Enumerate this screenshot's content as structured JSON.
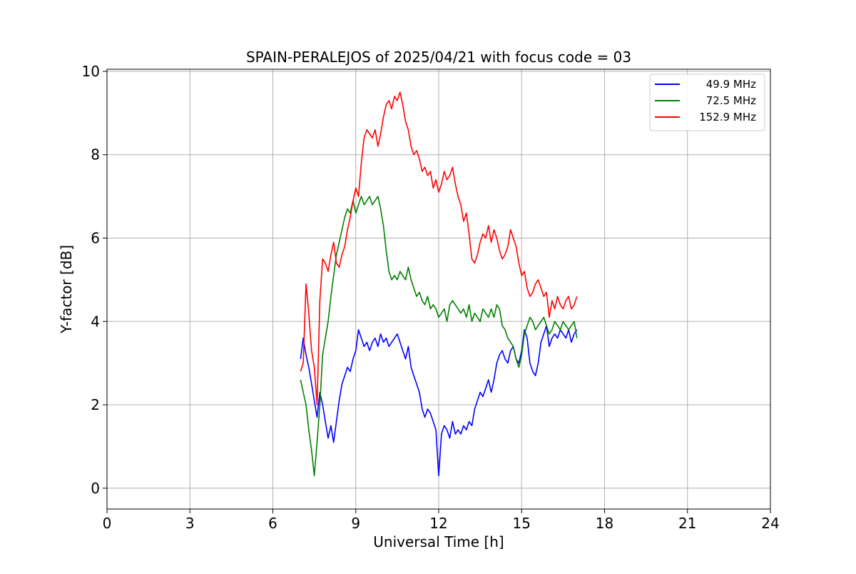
{
  "chart_data": {
    "type": "line",
    "title": "SPAIN-PERALEJOS of 2025/04/21 with focus code = 03",
    "xlabel": "Universal Time [h]",
    "ylabel": "Y-factor [dB]",
    "xlim": [
      0,
      24
    ],
    "ylim": [
      -0.5,
      10.05
    ],
    "xticks": [
      0,
      3,
      6,
      9,
      12,
      15,
      18,
      21,
      24
    ],
    "yticks": [
      0,
      2,
      4,
      6,
      8,
      10
    ],
    "grid": true,
    "legend_position": "top-right",
    "series": [
      {
        "name": "49.9 MHz",
        "color": "#0000ff",
        "x": [
          7.0,
          7.1,
          7.2,
          7.3,
          7.4,
          7.5,
          7.6,
          7.7,
          7.8,
          7.9,
          8.0,
          8.1,
          8.2,
          8.3,
          8.4,
          8.5,
          8.6,
          8.7,
          8.8,
          8.9,
          9.0,
          9.1,
          9.2,
          9.3,
          9.4,
          9.5,
          9.6,
          9.7,
          9.8,
          9.9,
          10.0,
          10.1,
          10.2,
          10.3,
          10.4,
          10.5,
          10.6,
          10.7,
          10.8,
          10.9,
          11.0,
          11.1,
          11.2,
          11.3,
          11.4,
          11.5,
          11.6,
          11.7,
          11.8,
          11.9,
          12.0,
          12.1,
          12.2,
          12.3,
          12.4,
          12.5,
          12.6,
          12.7,
          12.8,
          12.9,
          13.0,
          13.1,
          13.2,
          13.3,
          13.4,
          13.5,
          13.6,
          13.7,
          13.8,
          13.9,
          14.0,
          14.1,
          14.2,
          14.3,
          14.4,
          14.5,
          14.6,
          14.7,
          14.8,
          14.9,
          15.0,
          15.1,
          15.2,
          15.3,
          15.4,
          15.5,
          15.6,
          15.7,
          15.8,
          15.9,
          16.0,
          16.1,
          16.2,
          16.3,
          16.4,
          16.5,
          16.6,
          16.7,
          16.8,
          16.9,
          17.0
        ],
        "y": [
          3.1,
          3.6,
          3.2,
          2.9,
          2.5,
          2.1,
          1.7,
          2.3,
          2.0,
          1.6,
          1.2,
          1.5,
          1.1,
          1.6,
          2.1,
          2.5,
          2.7,
          2.9,
          2.8,
          3.1,
          3.3,
          3.8,
          3.6,
          3.4,
          3.5,
          3.3,
          3.5,
          3.6,
          3.4,
          3.7,
          3.5,
          3.6,
          3.4,
          3.5,
          3.6,
          3.7,
          3.5,
          3.3,
          3.1,
          3.4,
          2.9,
          2.7,
          2.5,
          2.3,
          1.9,
          1.7,
          1.9,
          1.8,
          1.6,
          1.4,
          0.3,
          1.3,
          1.5,
          1.4,
          1.2,
          1.6,
          1.3,
          1.4,
          1.3,
          1.5,
          1.4,
          1.6,
          1.5,
          1.9,
          2.1,
          2.3,
          2.2,
          2.4,
          2.6,
          2.3,
          2.6,
          3.0,
          3.2,
          3.3,
          3.1,
          3.0,
          3.3,
          3.4,
          3.1,
          3.0,
          3.3,
          3.8,
          3.6,
          3.0,
          2.8,
          2.7,
          3.0,
          3.5,
          3.7,
          3.9,
          3.4,
          3.6,
          3.7,
          3.6,
          3.8,
          3.7,
          3.6,
          3.8,
          3.5,
          3.7,
          3.8
        ]
      },
      {
        "name": "72.5 MHz",
        "color": "#008000",
        "x": [
          7.0,
          7.1,
          7.2,
          7.3,
          7.4,
          7.5,
          7.6,
          7.7,
          7.8,
          7.9,
          8.0,
          8.1,
          8.2,
          8.3,
          8.4,
          8.5,
          8.6,
          8.7,
          8.8,
          8.9,
          9.0,
          9.1,
          9.2,
          9.3,
          9.4,
          9.5,
          9.6,
          9.7,
          9.8,
          9.9,
          10.0,
          10.1,
          10.2,
          10.3,
          10.4,
          10.5,
          10.6,
          10.7,
          10.8,
          10.9,
          11.0,
          11.1,
          11.2,
          11.3,
          11.4,
          11.5,
          11.6,
          11.7,
          11.8,
          11.9,
          12.0,
          12.1,
          12.2,
          12.3,
          12.4,
          12.5,
          12.6,
          12.7,
          12.8,
          12.9,
          13.0,
          13.1,
          13.2,
          13.3,
          13.4,
          13.5,
          13.6,
          13.7,
          13.8,
          13.9,
          14.0,
          14.1,
          14.2,
          14.3,
          14.4,
          14.5,
          14.6,
          14.7,
          14.8,
          14.9,
          15.0,
          15.1,
          15.2,
          15.3,
          15.4,
          15.5,
          15.6,
          15.7,
          15.8,
          15.9,
          16.0,
          16.1,
          16.2,
          16.3,
          16.4,
          16.5,
          16.6,
          16.7,
          16.8,
          16.9,
          17.0
        ],
        "y": [
          2.6,
          2.3,
          2.0,
          1.4,
          0.9,
          0.3,
          1.1,
          2.0,
          3.2,
          3.6,
          4.0,
          4.6,
          5.1,
          5.6,
          5.9,
          6.2,
          6.5,
          6.7,
          6.6,
          6.9,
          6.6,
          6.8,
          7.0,
          6.8,
          6.9,
          7.0,
          6.8,
          6.9,
          7.0,
          6.7,
          6.3,
          5.7,
          5.2,
          5.0,
          5.1,
          5.0,
          5.2,
          5.1,
          5.0,
          5.3,
          5.0,
          4.8,
          4.6,
          4.7,
          4.5,
          4.4,
          4.6,
          4.3,
          4.4,
          4.3,
          4.1,
          4.2,
          4.3,
          4.0,
          4.4,
          4.5,
          4.4,
          4.3,
          4.2,
          4.3,
          4.1,
          4.4,
          4.0,
          4.2,
          4.1,
          4.0,
          4.3,
          4.2,
          4.1,
          4.3,
          4.1,
          4.4,
          4.3,
          3.9,
          3.8,
          3.6,
          3.5,
          3.4,
          3.1,
          2.9,
          3.2,
          3.7,
          3.9,
          4.1,
          4.0,
          3.8,
          3.9,
          4.0,
          4.1,
          3.9,
          3.7,
          3.8,
          4.0,
          3.9,
          3.8,
          4.0,
          3.9,
          3.8,
          3.9,
          4.0,
          3.6
        ]
      },
      {
        "name": "152.9 MHz",
        "color": "#ff0000",
        "x": [
          7.0,
          7.1,
          7.2,
          7.3,
          7.4,
          7.5,
          7.6,
          7.7,
          7.8,
          7.9,
          8.0,
          8.1,
          8.2,
          8.3,
          8.4,
          8.5,
          8.6,
          8.7,
          8.8,
          8.9,
          9.0,
          9.1,
          9.2,
          9.3,
          9.4,
          9.5,
          9.6,
          9.7,
          9.8,
          9.9,
          10.0,
          10.1,
          10.2,
          10.3,
          10.4,
          10.5,
          10.6,
          10.7,
          10.8,
          10.9,
          11.0,
          11.1,
          11.2,
          11.3,
          11.4,
          11.5,
          11.6,
          11.7,
          11.8,
          11.9,
          12.0,
          12.1,
          12.2,
          12.3,
          12.4,
          12.5,
          12.6,
          12.7,
          12.8,
          12.9,
          13.0,
          13.1,
          13.2,
          13.3,
          13.4,
          13.5,
          13.6,
          13.7,
          13.8,
          13.9,
          14.0,
          14.1,
          14.2,
          14.3,
          14.4,
          14.5,
          14.6,
          14.7,
          14.8,
          14.9,
          15.0,
          15.1,
          15.2,
          15.3,
          15.4,
          15.5,
          15.6,
          15.7,
          15.8,
          15.9,
          16.0,
          16.1,
          16.2,
          16.3,
          16.4,
          16.5,
          16.6,
          16.7,
          16.8,
          16.9,
          17.0
        ],
        "y": [
          2.8,
          3.0,
          4.9,
          4.2,
          3.3,
          2.9,
          2.0,
          4.5,
          5.5,
          5.4,
          5.2,
          5.6,
          5.9,
          5.4,
          5.3,
          5.6,
          5.8,
          6.2,
          6.5,
          6.9,
          7.2,
          7.0,
          7.8,
          8.4,
          8.6,
          8.5,
          8.4,
          8.6,
          8.2,
          8.5,
          8.9,
          9.2,
          9.3,
          9.1,
          9.4,
          9.3,
          9.5,
          9.2,
          8.8,
          8.6,
          8.2,
          8.0,
          8.1,
          7.9,
          7.6,
          7.7,
          7.5,
          7.6,
          7.2,
          7.4,
          7.1,
          7.3,
          7.6,
          7.4,
          7.5,
          7.7,
          7.3,
          7.0,
          6.8,
          6.4,
          6.6,
          6.1,
          5.5,
          5.4,
          5.6,
          5.9,
          6.1,
          6.0,
          6.3,
          5.9,
          6.2,
          6.0,
          5.7,
          5.5,
          5.6,
          5.8,
          6.2,
          6.0,
          5.8,
          5.4,
          5.1,
          5.2,
          4.8,
          4.6,
          4.7,
          4.9,
          5.0,
          4.8,
          4.6,
          4.7,
          4.1,
          4.5,
          4.3,
          4.6,
          4.4,
          4.3,
          4.5,
          4.6,
          4.3,
          4.4,
          4.6
        ]
      }
    ]
  }
}
